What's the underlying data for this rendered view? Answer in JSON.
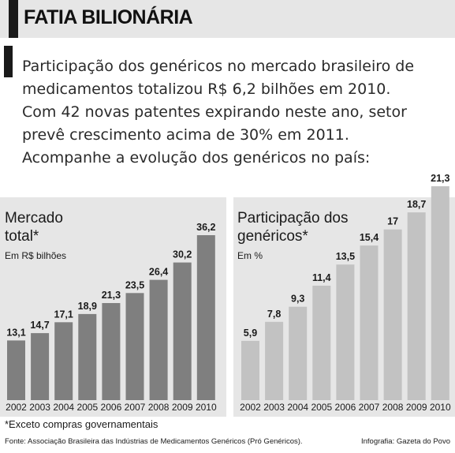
{
  "title": "FATIA BILIONÁRIA",
  "intro_lines": [
    "Participação dos genéricos no mercado brasileiro de",
    "medicamentos totalizou R$ 6,2 bilhões em 2010.",
    "Com 42 novas patentes expirando neste ano, setor",
    "prevê crescimento acima de 30% em 2011.",
    "Acompanhe a evolução dos genéricos no país:"
  ],
  "colors": {
    "header_band": "#e6e6e6",
    "accent": "#1a1a1a",
    "panel_background": "#e6e6e6",
    "market_bars": "#7f7f7f",
    "share_bars": "#c2c2c2"
  },
  "chart_data": [
    {
      "type": "bar",
      "title": "Mercado total*",
      "title_lines": [
        "Mercado",
        "total*"
      ],
      "unit": "Em R$ bilhões",
      "categories": [
        "2002",
        "2003",
        "2004",
        "2005",
        "2006",
        "2007",
        "2008",
        "2009",
        "2010"
      ],
      "values": [
        13.1,
        14.7,
        17.1,
        18.9,
        21.3,
        23.5,
        26.4,
        30.2,
        36.2
      ],
      "value_labels": [
        "13,1",
        "14,7",
        "17,1",
        "18,9",
        "21,3",
        "23,5",
        "26,4",
        "30,2",
        "36,2"
      ],
      "ylim": [
        0,
        36.2
      ],
      "grid": false,
      "legend": "none"
    },
    {
      "type": "bar",
      "title": "Participação dos genéricos*",
      "title_lines": [
        "Participação dos",
        "genéricos*"
      ],
      "unit": "Em %",
      "categories": [
        "2002",
        "2003",
        "2004",
        "2005",
        "2006",
        "2007",
        "2008",
        "2009",
        "2010"
      ],
      "values": [
        5.9,
        7.8,
        9.3,
        11.4,
        13.5,
        15.4,
        17,
        18.7,
        21.3
      ],
      "value_labels": [
        "5,9",
        "7,8",
        "9,3",
        "11,4",
        "13,5",
        "15,4",
        "17",
        "18,7",
        "21,3"
      ],
      "ylim": [
        0,
        21.3
      ],
      "grid": false,
      "legend": "none"
    }
  ],
  "footnote": "*Exceto compras governamentais",
  "source": "Fonte: Associação Brasileira das Indústrias de Medicamentos Genéricos (Pró Genéricos).",
  "credit": "Infografia: Gazeta do Povo"
}
